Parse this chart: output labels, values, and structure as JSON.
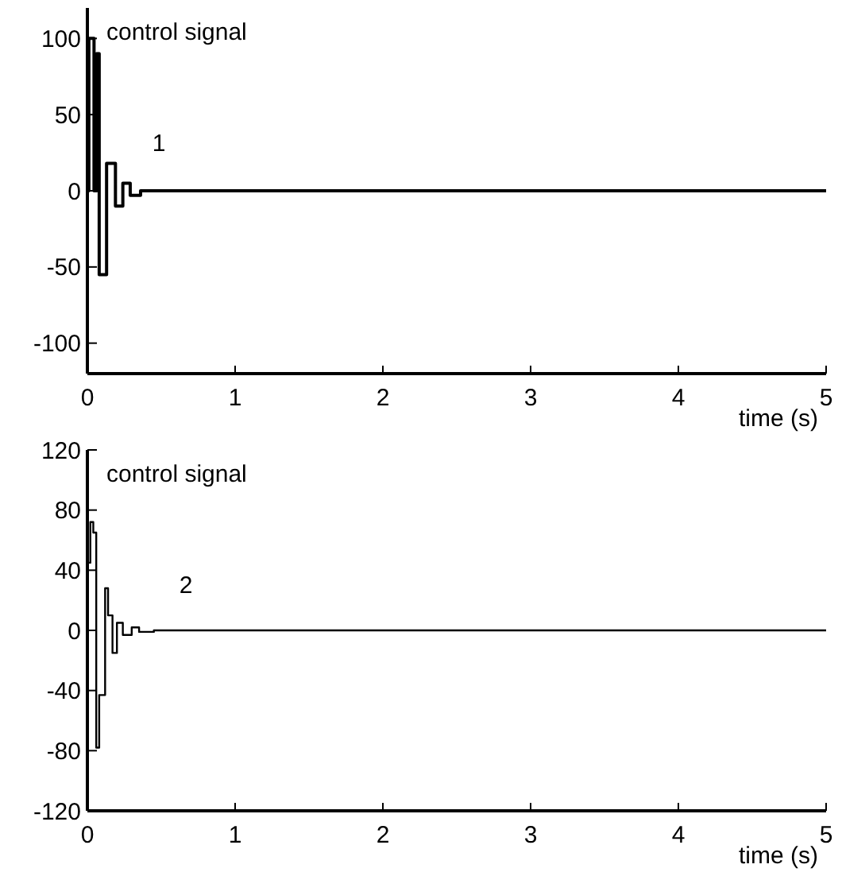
{
  "chart_data": [
    {
      "type": "step",
      "ylabel": "control signal",
      "xlabel": "time (s)",
      "annotations": [
        "1"
      ],
      "xlim": [
        0,
        5
      ],
      "xticks": [
        0,
        1,
        2,
        3,
        4,
        5
      ],
      "ylim": [
        -120,
        120
      ],
      "yticks": [
        -100,
        -50,
        0,
        50,
        100
      ],
      "series": [
        {
          "color": "#000000",
          "x": [
            0,
            0.01,
            0.045,
            0.063,
            0.08,
            0.13,
            0.19,
            0.24,
            0.29,
            0.36,
            5
          ],
          "values": [
            0,
            100,
            0,
            90,
            -55,
            18,
            -10,
            5,
            -3,
            0,
            0
          ]
        }
      ]
    },
    {
      "type": "step",
      "ylabel": "control signal",
      "xlabel": "time (s)",
      "annotations": [
        "2"
      ],
      "xlim": [
        0,
        5
      ],
      "xticks": [
        0,
        1,
        2,
        3,
        4,
        5
      ],
      "ylim": [
        -120,
        120
      ],
      "yticks": [
        -120,
        -80,
        -40,
        0,
        40,
        80,
        120
      ],
      "series": [
        {
          "color": "#000000",
          "x": [
            0,
            0.02,
            0.04,
            0.06,
            0.08,
            0.12,
            0.14,
            0.17,
            0.2,
            0.24,
            0.3,
            0.35,
            0.45,
            5
          ],
          "values": [
            45,
            72,
            65,
            -78,
            -43,
            28,
            10,
            -15,
            5,
            -3,
            2,
            -1,
            0,
            0
          ]
        }
      ]
    }
  ]
}
